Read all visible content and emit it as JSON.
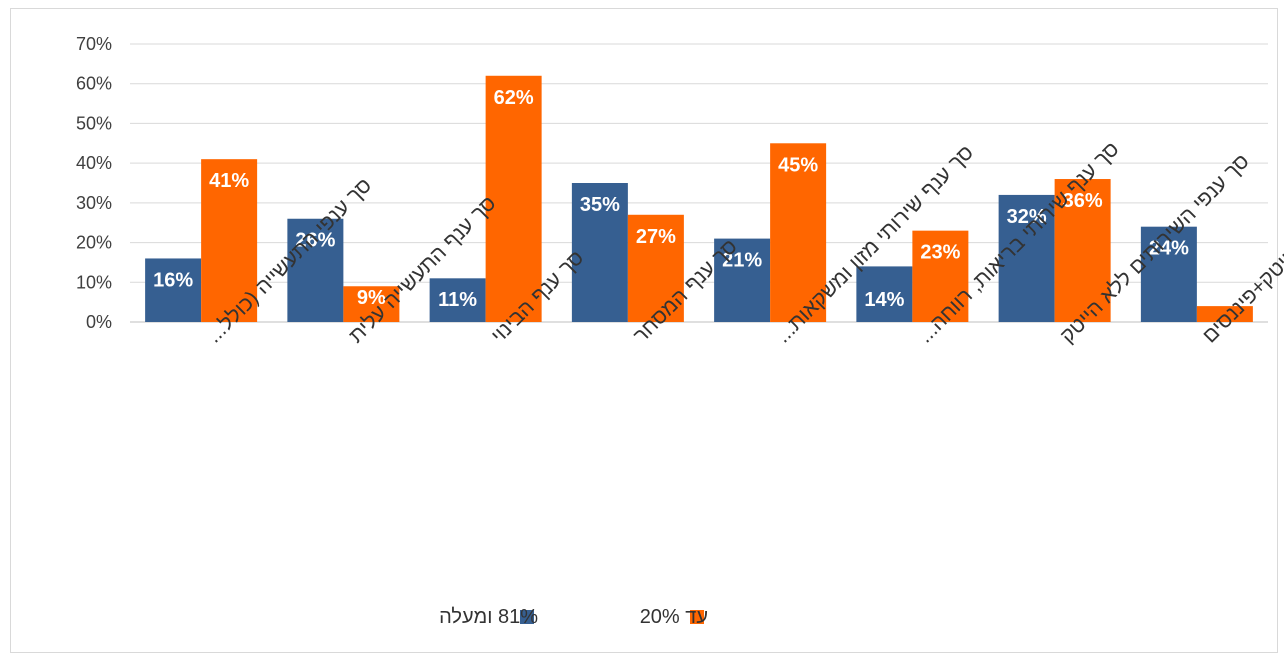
{
  "chart_data": {
    "type": "bar",
    "categories": [
      "סך ענפי התעשייה (כולל...",
      "סך ענף התעשייה עלית",
      "סך ענף הבינוי",
      "סך ענף המסחר",
      "סך ענף שירותי מזון ומשקאות...",
      "סך ענף שירותי בריאות, רווחה...",
      "סך ענפי השירותים ללא הייטק",
      "סך ענף שירותי הייטק+פיננסים"
    ],
    "series": [
      {
        "name": "81% ומעלה",
        "color": "#365f91",
        "values": [
          16,
          26,
          11,
          35,
          21,
          14,
          32,
          24
        ],
        "labels": [
          "16%",
          "26%",
          "11%",
          "35%",
          "21%",
          "14%",
          "32%",
          "24%"
        ]
      },
      {
        "name": "עד 20%",
        "color": "#ff6600",
        "values": [
          41,
          9,
          62,
          27,
          45,
          23,
          36,
          4
        ],
        "labels": [
          "41%",
          "9%",
          "62%",
          "27%",
          "45%",
          "23%",
          "36%",
          ""
        ]
      }
    ],
    "yticks": [
      "0%",
      "10%",
      "20%",
      "30%",
      "40%",
      "50%",
      "60%",
      "70%"
    ],
    "ylim": [
      0,
      70
    ],
    "grid": true,
    "legend_position": "bottom"
  }
}
